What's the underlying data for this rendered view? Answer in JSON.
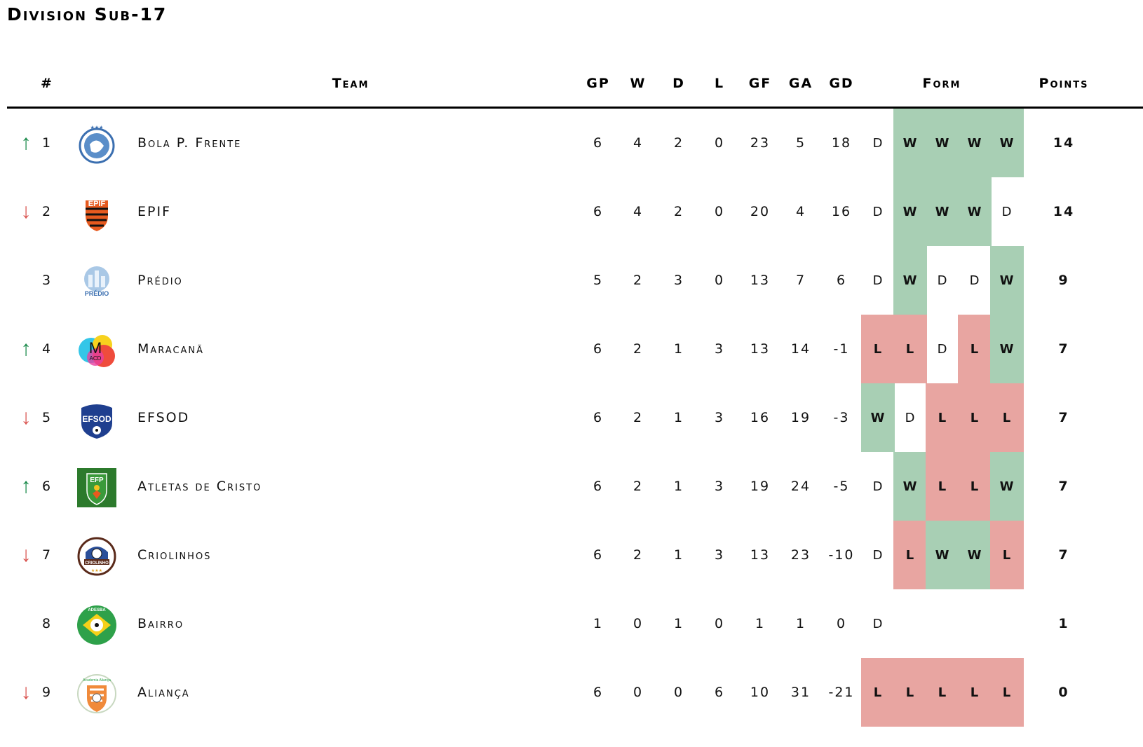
{
  "title": "Division Sub-17",
  "headers": {
    "pos": "#",
    "team": "Team",
    "gp": "GP",
    "w": "W",
    "d": "D",
    "l": "L",
    "gf": "GF",
    "ga": "GA",
    "gd": "GD",
    "form": "Form",
    "points": "Points"
  },
  "colors": {
    "win": "#a8cfb4",
    "loss": "#e8a5a1",
    "up_arrow": "#1a8a4a",
    "down_arrow": "#d9534f"
  },
  "rows": [
    {
      "pos": "1",
      "trend": "up",
      "arrow": "↑",
      "team": "Bola P. Frente",
      "logo": "bola-logo-icon",
      "gp": "6",
      "w": "4",
      "d": "2",
      "l": "0",
      "gf": "23",
      "ga": "5",
      "gd": "18",
      "form": [
        "D",
        "W",
        "W",
        "W",
        "W"
      ],
      "points": "14"
    },
    {
      "pos": "2",
      "trend": "down",
      "arrow": "↓",
      "team": "EPIF",
      "logo": "epif-logo-icon",
      "gp": "6",
      "w": "4",
      "d": "2",
      "l": "0",
      "gf": "20",
      "ga": "4",
      "gd": "16",
      "form": [
        "D",
        "W",
        "W",
        "W",
        "D"
      ],
      "points": "14"
    },
    {
      "pos": "3",
      "trend": "none",
      "arrow": "",
      "team": "Prédio",
      "logo": "predio-logo-icon",
      "gp": "5",
      "w": "2",
      "d": "3",
      "l": "0",
      "gf": "13",
      "ga": "7",
      "gd": "6",
      "form": [
        "D",
        "W",
        "D",
        "D",
        "W"
      ],
      "points": "9"
    },
    {
      "pos": "4",
      "trend": "up",
      "arrow": "↑",
      "team": "Maracanã",
      "logo": "maracana-logo-icon",
      "gp": "6",
      "w": "2",
      "d": "1",
      "l": "3",
      "gf": "13",
      "ga": "14",
      "gd": "-1",
      "form": [
        "L",
        "L",
        "D",
        "L",
        "W"
      ],
      "points": "7"
    },
    {
      "pos": "5",
      "trend": "down",
      "arrow": "↓",
      "team": "EFSOD",
      "logo": "efsod-logo-icon",
      "gp": "6",
      "w": "2",
      "d": "1",
      "l": "3",
      "gf": "16",
      "ga": "19",
      "gd": "-3",
      "form": [
        "W",
        "D",
        "L",
        "L",
        "L"
      ],
      "points": "7"
    },
    {
      "pos": "6",
      "trend": "up",
      "arrow": "↑",
      "team": "Atletas de Cristo",
      "logo": "atletas-logo-icon",
      "gp": "6",
      "w": "2",
      "d": "1",
      "l": "3",
      "gf": "19",
      "ga": "24",
      "gd": "-5",
      "form": [
        "D",
        "W",
        "L",
        "L",
        "W"
      ],
      "points": "7"
    },
    {
      "pos": "7",
      "trend": "down",
      "arrow": "↓",
      "team": "Criolinhos",
      "logo": "criolinhos-logo-icon",
      "gp": "6",
      "w": "2",
      "d": "1",
      "l": "3",
      "gf": "13",
      "ga": "23",
      "gd": "-10",
      "form": [
        "D",
        "L",
        "W",
        "W",
        "L"
      ],
      "points": "7"
    },
    {
      "pos": "8",
      "trend": "none",
      "arrow": "",
      "team": "Bairro",
      "logo": "bairro-logo-icon",
      "gp": "1",
      "w": "0",
      "d": "1",
      "l": "0",
      "gf": "1",
      "ga": "1",
      "gd": "0",
      "form": [
        "D"
      ],
      "points": "1"
    },
    {
      "pos": "9",
      "trend": "down",
      "arrow": "↓",
      "team": "Aliança",
      "logo": "alianca-logo-icon",
      "gp": "6",
      "w": "0",
      "d": "0",
      "l": "6",
      "gf": "10",
      "ga": "31",
      "gd": "-21",
      "form": [
        "L",
        "L",
        "L",
        "L",
        "L"
      ],
      "points": "0"
    }
  ]
}
